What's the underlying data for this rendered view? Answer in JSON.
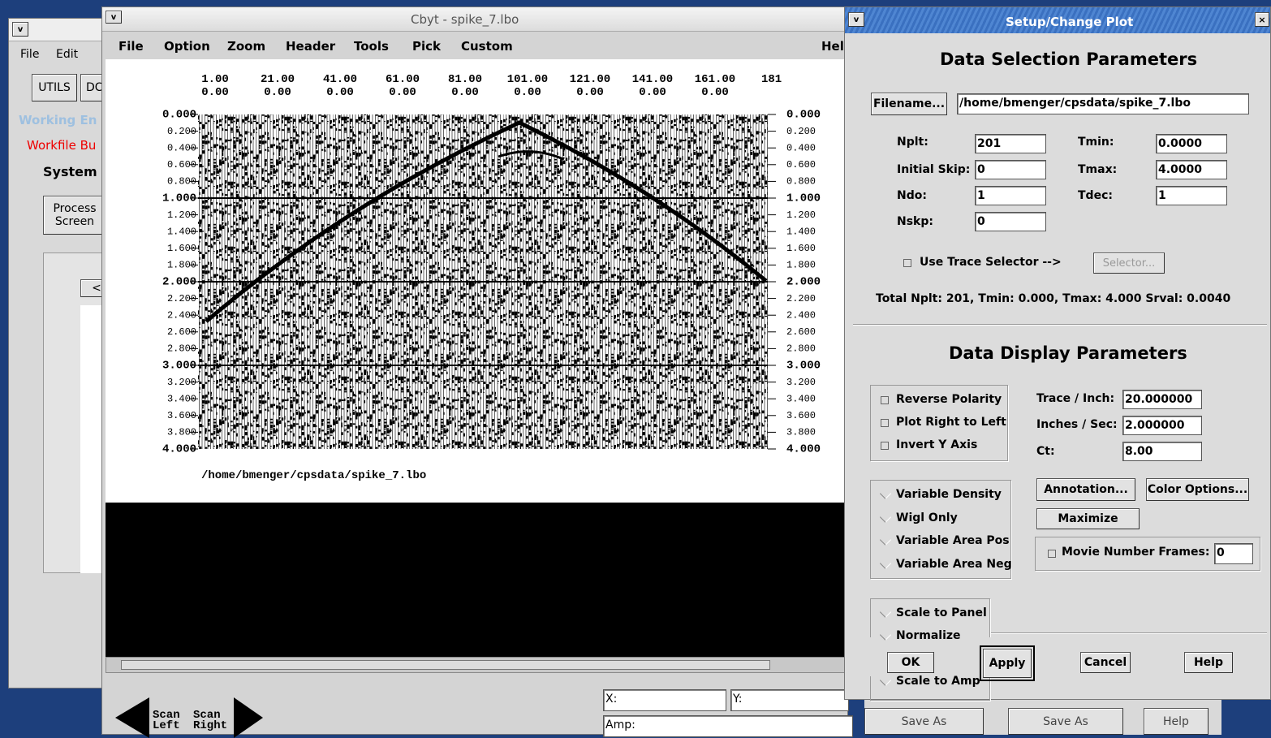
{
  "background_window": {
    "menu": [
      "File",
      "Edit"
    ],
    "buttons": [
      "UTILS",
      "DC"
    ],
    "tabs": [
      "Working En",
      "Workfile Bu"
    ],
    "section": "System",
    "process_button": [
      "Process",
      "Screen"
    ],
    "scroll_arrow": "<"
  },
  "viewer": {
    "title": "Cbyt - spike_7.lbo",
    "menu": [
      "File",
      "Option",
      "Zoom",
      "Header",
      "Tools",
      "Pick",
      "Custom",
      "Help"
    ],
    "trace_labels": [
      "1.00",
      "21.00",
      "41.00",
      "61.00",
      "81.00",
      "101.00",
      "121.00",
      "141.00",
      "161.00",
      "181"
    ],
    "offset_labels": [
      "0.00",
      "0.00",
      "0.00",
      "0.00",
      "0.00",
      "0.00",
      "0.00",
      "0.00",
      "0.00"
    ],
    "time_labels": [
      "0.000",
      "0.200",
      "0.400",
      "0.600",
      "0.800",
      "1.000",
      "1.200",
      "1.400",
      "1.600",
      "1.800",
      "2.000",
      "2.200",
      "2.400",
      "2.600",
      "2.800",
      "3.000",
      "3.200",
      "3.400",
      "3.600",
      "3.800",
      "4.000"
    ],
    "file_label": "/home/bmenger/cpsdata/spike_7.lbo",
    "scan_left": "Scan Left",
    "scan_right": "Scan Right",
    "x_field": "X:",
    "y_field": "Y:",
    "amp_field": "Amp:"
  },
  "dialog": {
    "title": "Setup/Change Plot",
    "selection_heading": "Data Selection Parameters",
    "filename_button": "Filename...",
    "filename": "/home/bmenger/cpsdata/spike_7.lbo",
    "nplt_label": "Nplt:",
    "nplt": "201",
    "initial_skip_label": "Initial Skip:",
    "initial_skip": "0",
    "ndo_label": "Ndo:",
    "ndo": "1",
    "nskp_label": "Nskp:",
    "nskp": "0",
    "tmin_label": "Tmin:",
    "tmin": "0.0000",
    "tmax_label": "Tmax:",
    "tmax": "4.0000",
    "tdec_label": "Tdec:",
    "tdec": "1",
    "trace_selector": "Use Trace Selector -->",
    "selector_button": "Selector...",
    "summary": "Total Nplt: 201,   Tmin: 0.000,   Tmax: 4.000   Srval: 0.0040",
    "display_heading": "Data Display Parameters",
    "checkboxes": [
      "Reverse Polarity",
      "Plot Right to Left",
      "Invert Y Axis"
    ],
    "trace_inch_label": "Trace / Inch:",
    "trace_inch": "20.000000",
    "inches_sec_label": "Inches / Sec:",
    "inches_sec": "2.000000",
    "ct_label": "Ct:",
    "ct": "8.00",
    "plot_modes": [
      "Variable Density",
      "Wigl Only",
      "Variable Area Pos",
      "Variable Area Neg"
    ],
    "annotation_button": "Annotation...",
    "color_button": "Color Options...",
    "maximize_button": "Maximize",
    "movie_label": "Movie Number Frames:",
    "movie_frames": "0",
    "scale_modes": [
      "Scale to Panel",
      "Normalize",
      "Scale to Amp"
    ],
    "ok": "OK",
    "apply": "Apply",
    "cancel": "Cancel",
    "help": "Help"
  },
  "desktop_buttons": [
    "Save As",
    "Save As",
    "Help"
  ]
}
